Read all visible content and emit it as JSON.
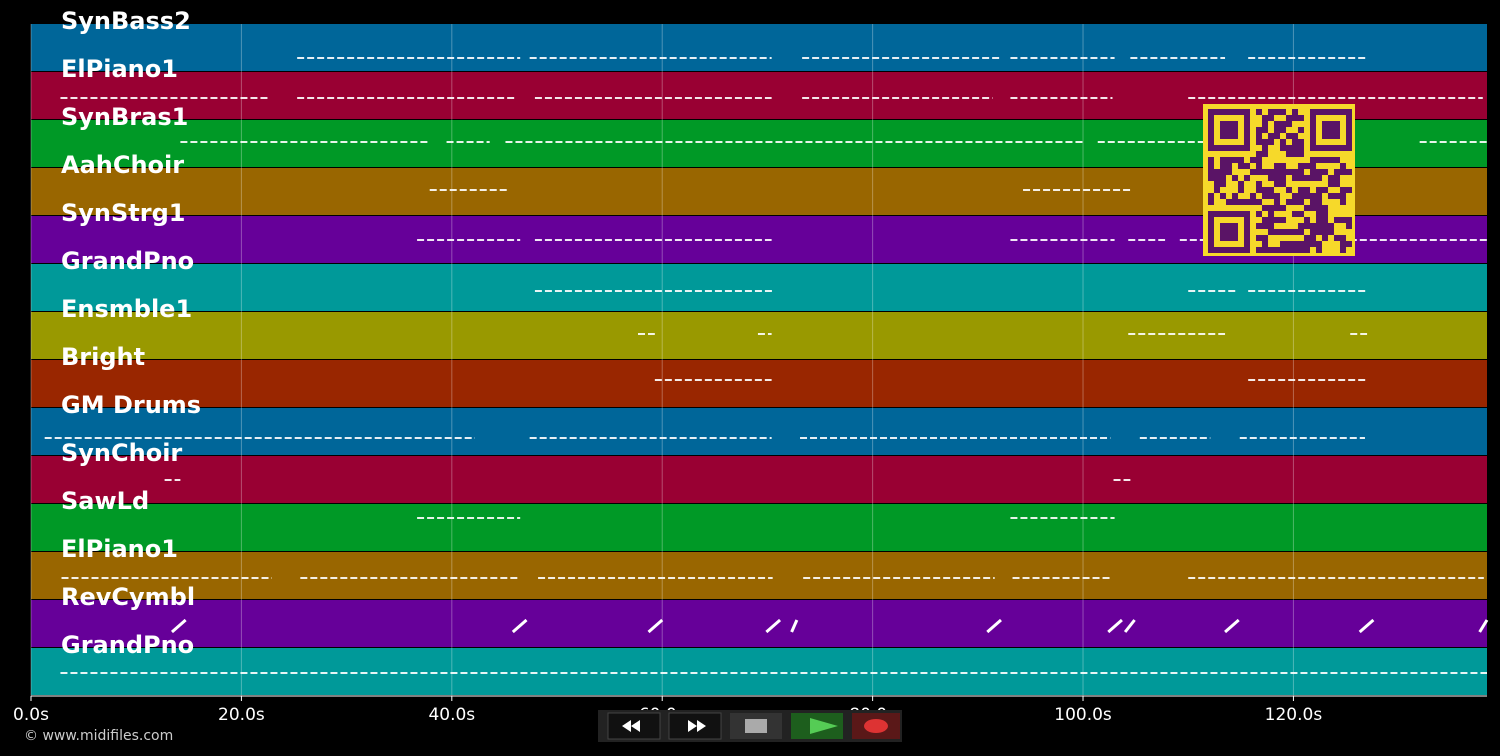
{
  "chart_data": {
    "type": "piano_roll",
    "xlim": [
      0,
      138.4
    ],
    "xticks": [
      {
        "value": 0,
        "label": "0.0s"
      },
      {
        "value": 20,
        "label": "20.0s"
      },
      {
        "value": 40,
        "label": "40.0s"
      },
      {
        "value": 60,
        "label": "60.0s"
      },
      {
        "value": 80,
        "label": "80.0s"
      },
      {
        "value": 100,
        "label": "100.0s"
      },
      {
        "value": 120,
        "label": "120.0s"
      }
    ],
    "grid": true,
    "series": [
      {
        "name": "SynBass2",
        "color": "#006699",
        "notes": [
          [
            25.3,
            46.5
          ],
          [
            47.4,
            70.4
          ],
          [
            73.3,
            92.1
          ],
          [
            93.1,
            103
          ],
          [
            104.5,
            113.5
          ],
          [
            115.7,
            127.1
          ]
        ]
      },
      {
        "name": "ElPiano1",
        "color": "#990033",
        "notes": [
          [
            2.8,
            22.7
          ],
          [
            25.3,
            46.2
          ],
          [
            47.9,
            70.4
          ],
          [
            73.3,
            91.4
          ],
          [
            93.1,
            102.8
          ],
          [
            110,
            138
          ]
        ]
      },
      {
        "name": "SynBras1",
        "color": "#009926",
        "notes": [
          [
            14.2,
            37.9
          ],
          [
            39.5,
            43.6
          ],
          [
            45.1,
            100.2
          ],
          [
            101.4,
            112.5
          ],
          [
            132,
            138.4
          ]
        ]
      },
      {
        "name": "AahChoir",
        "color": "#996600",
        "notes": [
          [
            37.9,
            45.3
          ],
          [
            94.3,
            104.5
          ]
        ]
      },
      {
        "name": "SynStrg1",
        "color": "#660099",
        "notes": [
          [
            36.7,
            46.5
          ],
          [
            47.9,
            70.4
          ],
          [
            93.1,
            103
          ],
          [
            104.3,
            107.8
          ],
          [
            109.2,
            138.4
          ]
        ]
      },
      {
        "name": "GrandPno",
        "color": "#009999",
        "notes": [
          [
            47.9,
            70.5
          ],
          [
            110,
            114.5
          ],
          [
            115.7,
            127
          ]
        ]
      },
      {
        "name": "Ensmble1",
        "color": "#999900",
        "notes": [
          [
            57.7,
            59.3
          ],
          [
            69.1,
            70.4
          ],
          [
            104.3,
            113.5
          ],
          [
            125.4,
            127
          ]
        ]
      },
      {
        "name": "Bright",
        "color": "#992600",
        "notes": [
          [
            59.3,
            70.4
          ],
          [
            115.7,
            127
          ]
        ]
      },
      {
        "name": "GM Drums",
        "color": "#006699",
        "notes": [
          [
            1.3,
            42.2
          ],
          [
            47.4,
            70.4
          ],
          [
            73.1,
            102.6
          ],
          [
            105.4,
            112.1
          ],
          [
            114.9,
            126.8
          ]
        ]
      },
      {
        "name": "SynChoir",
        "color": "#990033",
        "notes": [
          [
            12.7,
            14.2
          ],
          [
            102.9,
            104.5
          ]
        ]
      },
      {
        "name": "SawLd",
        "color": "#009926",
        "notes": [
          [
            36.7,
            46.5
          ],
          [
            93.1,
            103
          ]
        ]
      },
      {
        "name": "ElPiano1",
        "color": "#996600",
        "notes": [
          [
            2.9,
            22.9
          ],
          [
            25.6,
            46.5
          ],
          [
            48.2,
            70.5
          ],
          [
            73.4,
            91.6
          ],
          [
            93.3,
            102.6
          ],
          [
            110,
            138.1
          ]
        ]
      },
      {
        "name": "RevCymbl",
        "color": "#660099",
        "notes": [
          [
            13.4,
            14.7
          ],
          [
            45.8,
            47.1
          ],
          [
            58.7,
            60
          ],
          [
            69.9,
            71.2
          ],
          [
            72.3,
            72.8
          ],
          [
            90.9,
            92.2
          ],
          [
            102.4,
            103.7
          ],
          [
            104,
            104.9
          ],
          [
            113.5,
            114.8
          ],
          [
            126.3,
            127.6
          ],
          [
            137.7,
            138.4
          ]
        ]
      },
      {
        "name": "GrandPno",
        "color": "#009999",
        "notes": [
          [
            2.8,
            138.4
          ]
        ]
      }
    ]
  },
  "footer": {
    "copyright": "© www.midifiles.com"
  }
}
